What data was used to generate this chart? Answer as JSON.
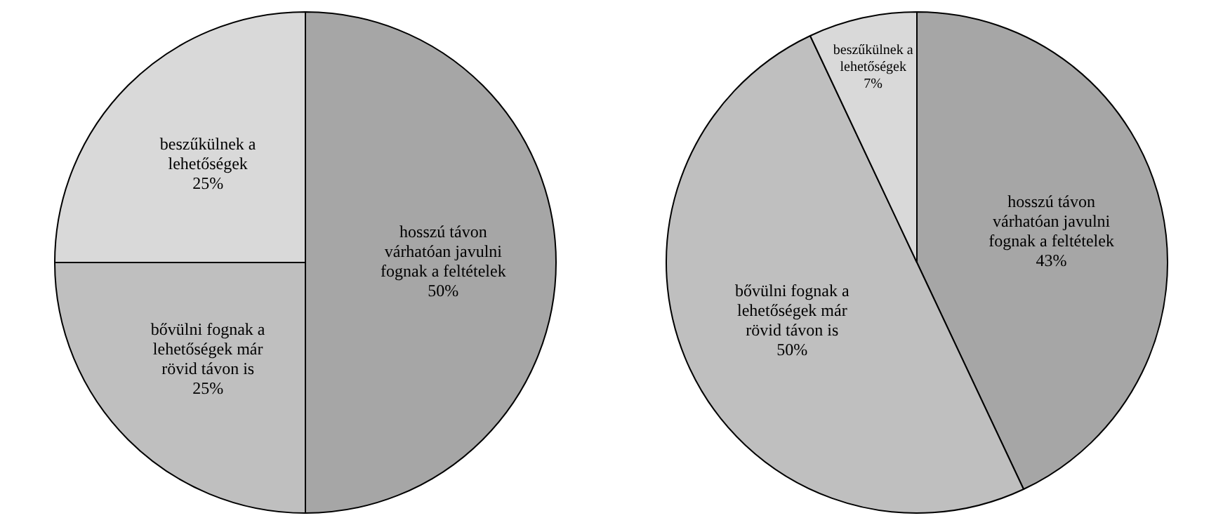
{
  "chart_data": [
    {
      "type": "pie",
      "categories": [
        "hosszú távon várhatóan javulni fognak a feltételek",
        "bővülni fognak a lehetőségek már rövid távon is",
        "beszűkülnek a lehetőségek"
      ],
      "values": [
        50,
        25,
        25
      ],
      "value_labels": [
        "50%",
        "25%",
        "25%"
      ],
      "colors": [
        "#a6a6a6",
        "#bfbfbf",
        "#d9d9d9"
      ]
    },
    {
      "type": "pie",
      "categories": [
        "hosszú távon várhatóan javulni fognak a feltételek",
        "bővülni fognak a lehetőségek már rövid távon is",
        "beszűkülnek a lehetőségek"
      ],
      "values": [
        43,
        50,
        7
      ],
      "value_labels": [
        "43%",
        "50%",
        "7%"
      ],
      "colors": [
        "#a6a6a6",
        "#bfbfbf",
        "#d9d9d9"
      ]
    }
  ]
}
